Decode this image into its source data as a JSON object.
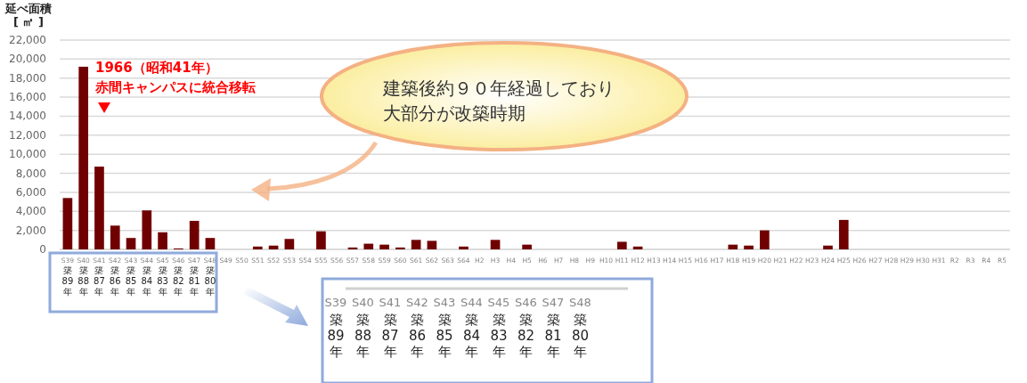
{
  "chart_data": {
    "type": "bar",
    "ylabel": "延べ面積[ ㎡ ]",
    "categories": [
      "S39",
      "S40",
      "S41",
      "S42",
      "S43",
      "S44",
      "S45",
      "S46",
      "S47",
      "S48",
      "S49",
      "S50",
      "S51",
      "S52",
      "S53",
      "S54",
      "S55",
      "S56",
      "S57",
      "S58",
      "S59",
      "S60",
      "S61",
      "S62",
      "S63",
      "S64",
      "H2",
      "H3",
      "H4",
      "H5",
      "H6",
      "H7",
      "H8",
      "H9",
      "H10",
      "H11",
      "H12",
      "H13",
      "H14",
      "H15",
      "H16",
      "H17",
      "H18",
      "H19",
      "H20",
      "H21",
      "H22",
      "H23",
      "H24",
      "H25",
      "H26",
      "H27",
      "H28",
      "H29",
      "H30",
      "H31",
      "R2",
      "R3",
      "R4",
      "R5"
    ],
    "values": [
      5400,
      19200,
      8700,
      2500,
      1200,
      4100,
      1800,
      100,
      3000,
      1200,
      0,
      0,
      300,
      400,
      1100,
      0,
      1900,
      0,
      200,
      600,
      500,
      200,
      1000,
      900,
      0,
      300,
      0,
      1000,
      0,
      500,
      0,
      0,
      0,
      0,
      0,
      800,
      300,
      0,
      0,
      0,
      0,
      0,
      500,
      400,
      2000,
      0,
      0,
      0,
      400,
      3100,
      0,
      0,
      0,
      0,
      0,
      0,
      0,
      0,
      0,
      0
    ],
    "color": "#700000",
    "ylim": [
      0,
      22000
    ],
    "yticks": [
      {
        "value": 0,
        "label": "0"
      },
      {
        "value": 2000,
        "label": "2,000"
      },
      {
        "value": 4000,
        "label": "4,000"
      },
      {
        "value": 6000,
        "label": "6,000"
      },
      {
        "value": 8000,
        "label": "8,000"
      },
      {
        "value": 10000,
        "label": "10,000"
      },
      {
        "value": 12000,
        "label": "12,000"
      },
      {
        "value": 14000,
        "label": "14,000"
      },
      {
        "value": 16000,
        "label": "16,000"
      },
      {
        "value": 18000,
        "label": "18,000"
      },
      {
        "value": 20000,
        "label": "20,000"
      },
      {
        "value": 22000,
        "label": "22,000"
      }
    ],
    "grid": "y",
    "annotations": [
      "築89年",
      "築88年",
      "築87年",
      "築86年",
      "築85年",
      "築84年",
      "築83年",
      "築82年",
      "築81年",
      "築80年",
      "1966（昭和41年）",
      "赤間キャンパスに統合移転",
      "建築後約９０年経過しており",
      "大部分が改築時期"
    ]
  }
}
